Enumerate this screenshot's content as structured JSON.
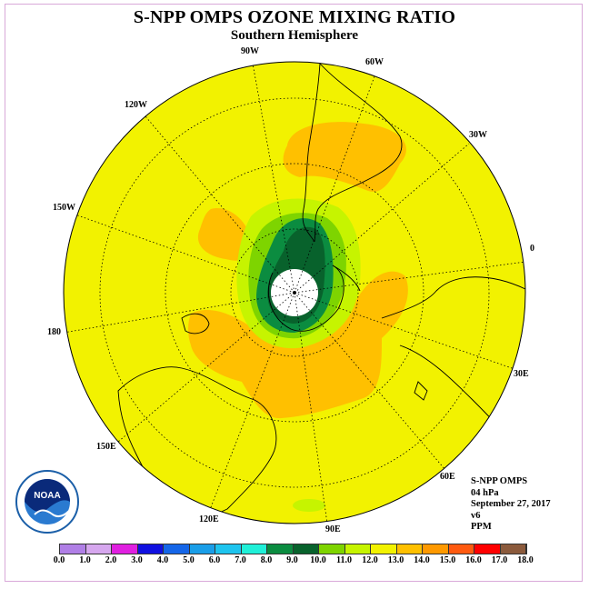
{
  "title": "S-NPP OMPS OZONE MIXING RATIO",
  "subtitle": "Southern Hemisphere",
  "longitudes": [
    "0",
    "30E",
    "60E",
    "90E",
    "120E",
    "150E",
    "180",
    "150W",
    "120W",
    "90W",
    "60W",
    "30W"
  ],
  "info": {
    "instrument": "S-NPP OMPS",
    "level": "04 hPa",
    "date": "September 27, 2017",
    "version": "v6",
    "units": "PPM"
  },
  "colorbar": {
    "ticks": [
      "0.0",
      "1.0",
      "2.0",
      "3.0",
      "4.0",
      "5.0",
      "6.0",
      "7.0",
      "8.0",
      "9.0",
      "10.0",
      "11.0",
      "12.0",
      "13.0",
      "14.0",
      "15.0",
      "16.0",
      "17.0",
      "18.0"
    ],
    "colors": [
      "#b07fe6",
      "#d6a7ee",
      "#e020e0",
      "#1010e0",
      "#1566e8",
      "#1a9ee8",
      "#1ec4ee",
      "#20f0d8",
      "#0b8c40",
      "#08622c",
      "#7ed400",
      "#c6f400",
      "#f2f200",
      "#ffc000",
      "#ff9900",
      "#ff5a10",
      "#ff0000",
      "#8b5a3c"
    ]
  },
  "logo_text": "NOAA",
  "colors": {
    "background_field": "#f2f200",
    "high_contour": "#ffc000",
    "vortex_dark": "#08622c",
    "vortex_mid": "#0b8c40",
    "border_frame": "#d9a9d9"
  }
}
